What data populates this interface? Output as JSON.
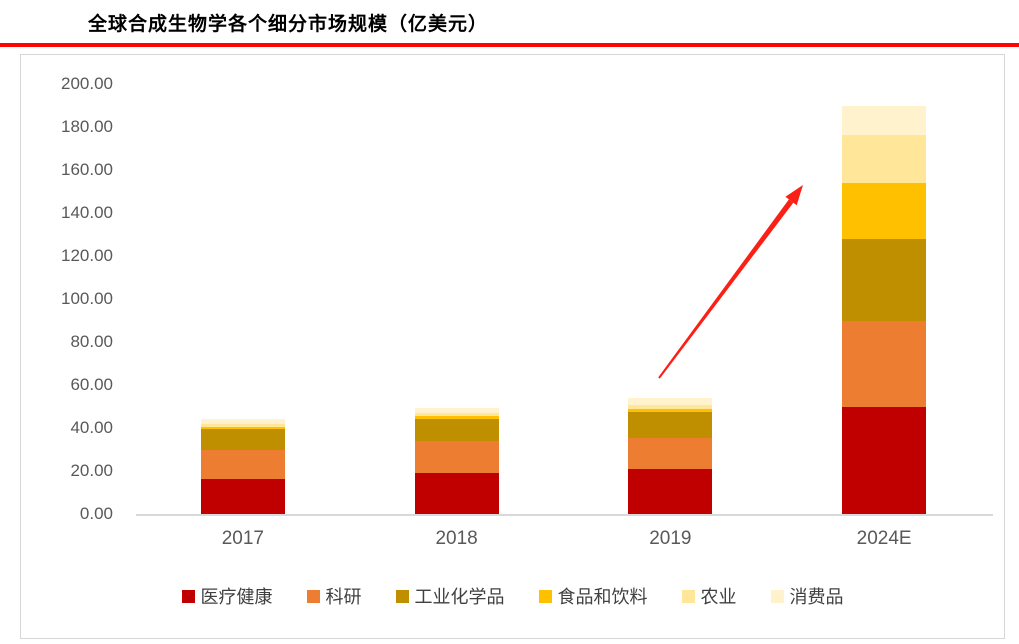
{
  "page": {
    "title": "全球合成生物学各个细分市场规模（亿美元）",
    "accent_color": "#fe0505"
  },
  "chart_data": {
    "type": "bar",
    "stacked": true,
    "title": "全球合成生物学各个细分市场规模（亿美元）",
    "unit": "亿美元",
    "categories": [
      "2017",
      "2018",
      "2019",
      "2024E"
    ],
    "series": [
      {
        "name": "医疗健康",
        "color": "#c00000",
        "values": [
          16.5,
          19.0,
          21.0,
          50.0
        ]
      },
      {
        "name": "科研",
        "color": "#ed7d31",
        "values": [
          13.5,
          15.0,
          14.5,
          40.0
        ]
      },
      {
        "name": "工业化学品",
        "color": "#bf8f00",
        "values": [
          9.5,
          10.0,
          12.0,
          38.0
        ]
      },
      {
        "name": "食品和饮料",
        "color": "#ffc000",
        "values": [
          1.0,
          1.5,
          1.5,
          26.0
        ]
      },
      {
        "name": "农业",
        "color": "#ffe699",
        "values": [
          1.5,
          1.5,
          1.5,
          22.5
        ]
      },
      {
        "name": "消费品",
        "color": "#fff2cc",
        "values": [
          2.0,
          2.5,
          3.5,
          13.5
        ]
      }
    ],
    "totals": [
      44.0,
      49.5,
      54.0,
      190.0
    ],
    "ylim": [
      0,
      200
    ],
    "y_tick_step": 20,
    "y_tick_labels": [
      "0.00",
      "20.00",
      "40.00",
      "60.00",
      "80.00",
      "100.00",
      "120.00",
      "140.00",
      "160.00",
      "180.00",
      "200.00"
    ],
    "grid": false,
    "legend_position": "bottom",
    "axis_label_color": "#595959",
    "annotation": {
      "type": "arrow",
      "color": "#fb2015",
      "from_category": "2019",
      "to_category": "2024E",
      "meaning": "strong growth to 2024E"
    }
  }
}
